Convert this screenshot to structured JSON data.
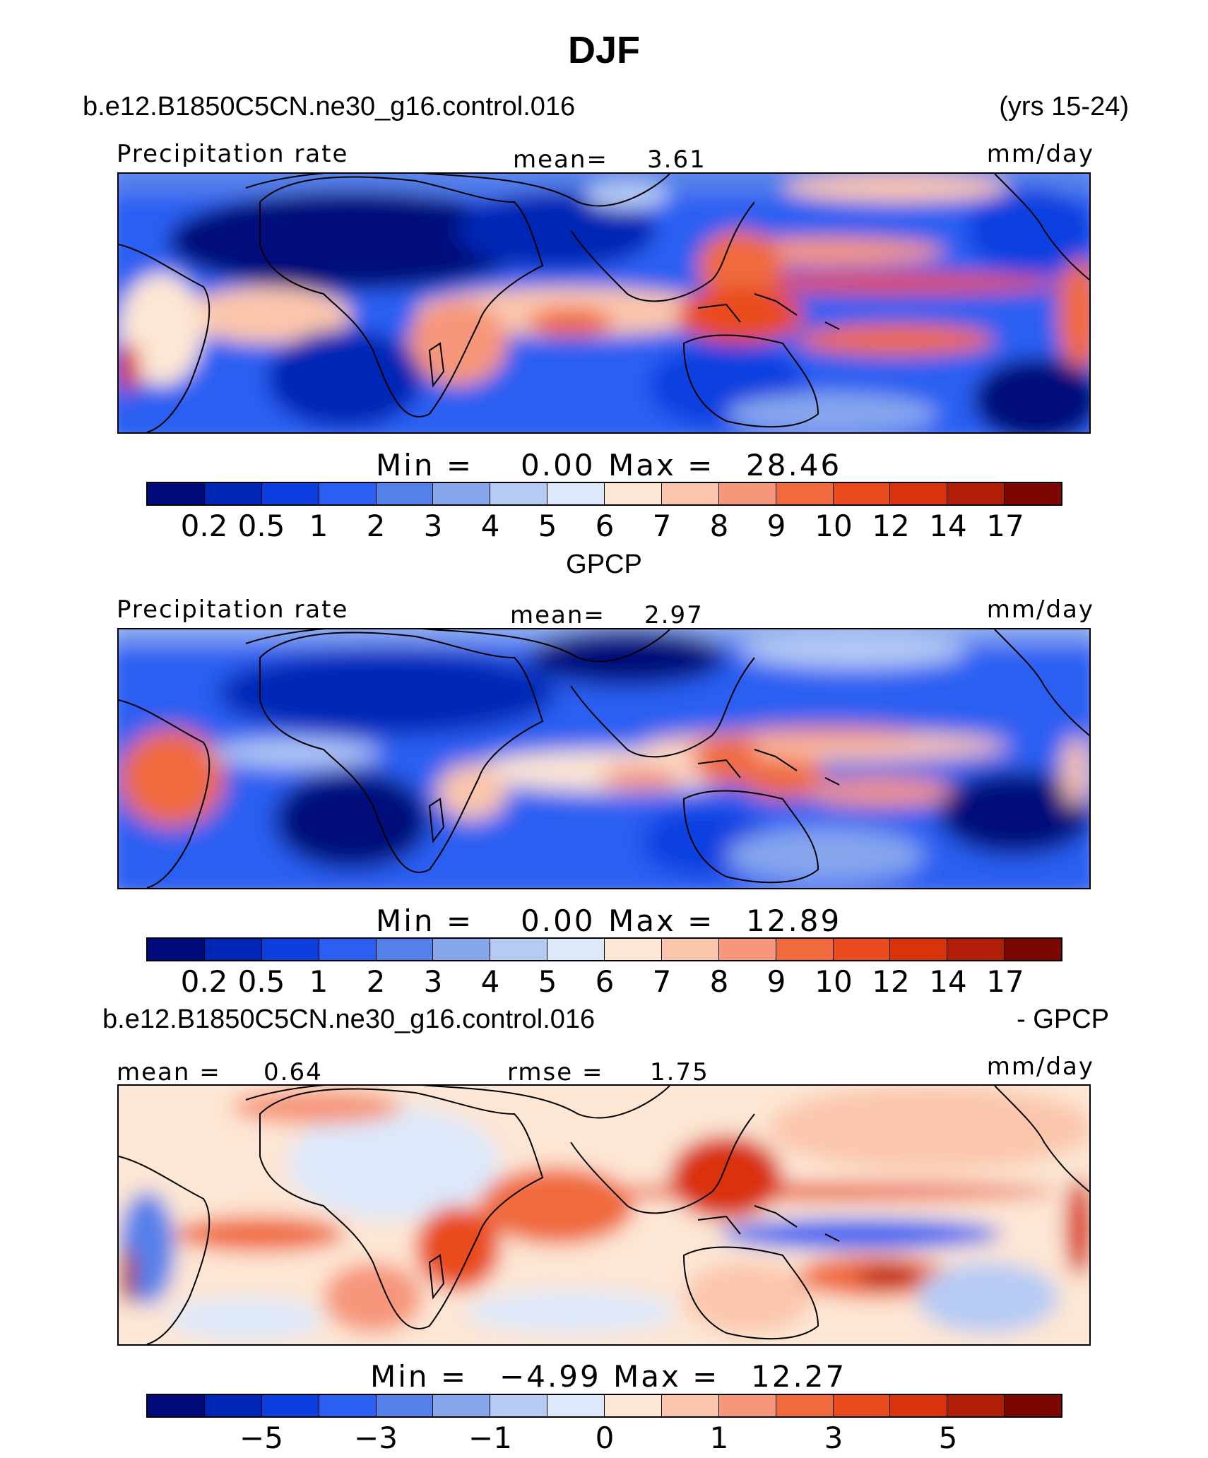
{
  "page": {
    "title": "DJF"
  },
  "colors": [
    "#000a7a",
    "#0026b5",
    "#0d3fe0",
    "#2b5ff2",
    "#5580ea",
    "#86a6ee",
    "#b6cbf4",
    "#dde8fa",
    "#fde6d4",
    "#fbc6ac",
    "#f6967a",
    "#f06a3e",
    "#e94b1f",
    "#d9330e",
    "#b01e08",
    "#7b0700"
  ],
  "panels": [
    {
      "case_label": "b.e12.B1850C5CN.ne30_g16.control.016",
      "right_label": "(yrs 15-24)",
      "variable_label": "Precipitation rate",
      "mean_label": "mean=",
      "mean_value": "3.61",
      "units": "mm/day",
      "min_label": "Min  =",
      "min_value": "0.00",
      "max_label": "Max  =",
      "max_value": "28.46",
      "tick_labels": [
        "0.2",
        "0.5",
        "1",
        "2",
        "3",
        "4",
        "5",
        "6",
        "7",
        "8",
        "9",
        "10",
        "12",
        "14",
        "17"
      ]
    },
    {
      "case_label": "GPCP",
      "variable_label": "Precipitation rate",
      "mean_label": "mean=",
      "mean_value": "2.97",
      "units": "mm/day",
      "min_label": "Min  =",
      "min_value": "0.00",
      "max_label": "Max  =",
      "max_value": "12.89",
      "tick_labels": [
        "0.2",
        "0.5",
        "1",
        "2",
        "3",
        "4",
        "5",
        "6",
        "7",
        "8",
        "9",
        "10",
        "12",
        "14",
        "17"
      ]
    },
    {
      "case_label": "b.e12.B1850C5CN.ne30_g16.control.016",
      "right_label": "- GPCP",
      "mean_label": "mean =",
      "mean_value": "0.64",
      "rmse_label": "rmse =",
      "rmse_value": "1.75",
      "units": "mm/day",
      "min_label": "Min  =",
      "min_value": "−4.99",
      "max_label": "Max  =",
      "max_value": "12.27",
      "tick_labels": [
        "−5",
        "−3",
        "−1",
        "0",
        "1",
        "3",
        "5"
      ]
    }
  ]
}
